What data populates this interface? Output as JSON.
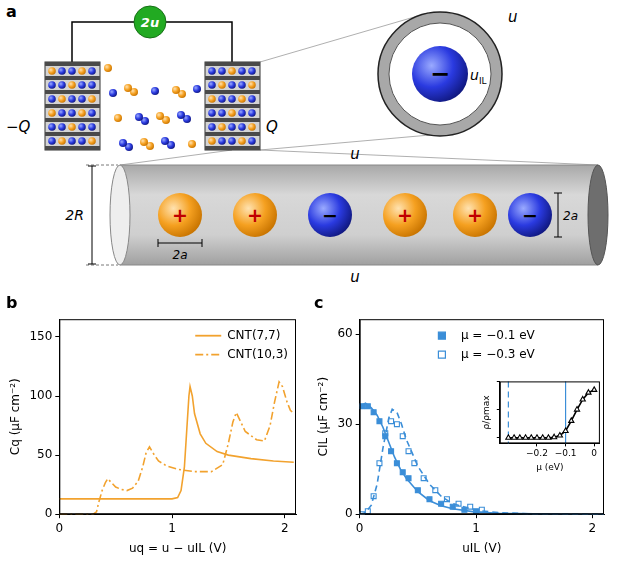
{
  "diagram": {
    "label": "a",
    "battery": "2u",
    "left_charge": "−Q",
    "right_charge": "Q",
    "zoom": {
      "ion": "−",
      "inner_potential": {
        "text": "u",
        "sub": "IL"
      },
      "outer_potential": "u"
    },
    "pore": {
      "top_potential": "u",
      "bottom_potential": "u",
      "diameter": "2R",
      "ion_diameters": [
        "2a",
        "2a"
      ],
      "ions": [
        "+",
        "+",
        "−",
        "+",
        "+",
        "−"
      ]
    }
  },
  "chart_data": [
    {
      "type": "line",
      "title": "b",
      "x_label": "uq = u − uIL (V)",
      "y_label": "Cq (μF cm⁻²)",
      "xlim": [
        0,
        2.1
      ],
      "xticks": [
        0,
        1,
        2
      ],
      "ylim": [
        0,
        165
      ],
      "yticks": [
        0,
        50,
        100,
        150
      ],
      "grid": false,
      "legend": "upper right",
      "series": [
        {
          "name": "CNT(7,7)",
          "color": "#f2a22e",
          "line_style": "solid",
          "x": [
            0,
            0.5,
            1.0,
            1.05,
            1.08,
            1.11,
            1.13,
            1.15,
            1.16,
            1.18,
            1.2,
            1.25,
            1.3,
            1.4,
            1.5,
            1.7,
            1.9,
            2.08
          ],
          "values": [
            13,
            13,
            13,
            14,
            20,
            40,
            70,
            100,
            108,
            100,
            85,
            68,
            60,
            53,
            50,
            47,
            45,
            44
          ]
        },
        {
          "name": "CNT(10,3)",
          "color": "#f2a22e",
          "line_style": "dashdot",
          "x": [
            0,
            0.3,
            0.33,
            0.35,
            0.38,
            0.41,
            0.43,
            0.46,
            0.5,
            0.55,
            0.6,
            0.65,
            0.7,
            0.74,
            0.77,
            0.8,
            0.83,
            0.88,
            0.95,
            1.05,
            1.2,
            1.35,
            1.45,
            1.5,
            1.54,
            1.57,
            1.6,
            1.65,
            1.75,
            1.82,
            1.87,
            1.91,
            1.95,
            1.98,
            2.02,
            2.05,
            2.08
          ],
          "values": [
            0,
            0,
            2,
            10,
            20,
            27,
            30,
            27,
            23,
            21,
            20,
            22,
            28,
            40,
            52,
            57,
            52,
            45,
            41,
            38,
            36,
            36,
            42,
            60,
            78,
            86,
            80,
            70,
            63,
            62,
            75,
            95,
            112,
            108,
            95,
            88,
            85
          ]
        }
      ]
    },
    {
      "type": "line",
      "title": "c",
      "x_label": "uIL (V)",
      "y_label": "CIL (μF cm⁻²)",
      "xlim": [
        0,
        2.1
      ],
      "xticks": [
        0,
        1,
        2
      ],
      "ylim": [
        0,
        65
      ],
      "yticks": [
        0,
        30,
        60
      ],
      "grid": false,
      "legend": "upper center",
      "series": [
        {
          "type": "line",
          "color": "#3b8ed8",
          "line_style": "solid",
          "x": [
            0,
            0.05,
            0.1,
            0.15,
            0.2,
            0.25,
            0.3,
            0.35,
            0.4,
            0.5,
            0.6,
            0.7,
            0.8,
            1.0,
            1.2,
            1.5,
            2.0,
            2.1
          ],
          "values": [
            36,
            37,
            35.5,
            33,
            29,
            24,
            19,
            15,
            12,
            7.5,
            4.5,
            2.8,
            1.8,
            0.7,
            0.3,
            0.1,
            0,
            0
          ]
        },
        {
          "type": "line",
          "color": "#3b8ed8",
          "line_style": "dashed",
          "x": [
            0,
            0.05,
            0.1,
            0.15,
            0.2,
            0.25,
            0.28,
            0.32,
            0.36,
            0.4,
            0.5,
            0.6,
            0.7,
            0.8,
            1.0,
            1.2,
            1.5,
            2.0,
            2.1
          ],
          "values": [
            0,
            0.5,
            3,
            10,
            22,
            32,
            35,
            34,
            30,
            25,
            16,
            10,
            6,
            3.5,
            1.3,
            0.5,
            0.1,
            0,
            0
          ]
        },
        {
          "type": "scatter",
          "name": "μ = −0.1 eV",
          "color": "#3b8ed8",
          "marker": "filled_square",
          "x": [
            0.02,
            0.07,
            0.12,
            0.17,
            0.22,
            0.27,
            0.32,
            0.37,
            0.42,
            0.5,
            0.6,
            0.7,
            0.8,
            0.9,
            1.0
          ],
          "values": [
            36,
            36,
            34,
            31,
            26,
            21,
            17,
            14,
            12,
            8,
            5,
            3.5,
            2.5,
            1.5,
            1
          ]
        },
        {
          "type": "scatter",
          "name": "μ = −0.3 eV",
          "color": "#3b8ed8",
          "marker": "open_square",
          "x": [
            0.02,
            0.07,
            0.12,
            0.17,
            0.22,
            0.27,
            0.32,
            0.37,
            0.42,
            0.47,
            0.55,
            0.65,
            0.75,
            0.85,
            0.95,
            1.05
          ],
          "values": [
            0,
            1,
            6,
            17,
            27,
            31,
            30,
            26,
            21,
            17,
            12,
            8,
            5,
            3.5,
            2.5,
            1.5
          ]
        }
      ],
      "inset": {
        "type": "line",
        "x_label": "μ (eV)",
        "y_label": "ρ/ρmax",
        "xlim": [
          -0.33,
          0.02
        ],
        "xticks": [
          {
            "value": -0.2,
            "label": "−0.2"
          },
          {
            "value": -0.1,
            "label": "−0.1"
          },
          0
        ],
        "ylim": [
          -0.1,
          1
        ],
        "yticks": [
          0,
          0.5,
          1
        ],
        "tick_labels": "x",
        "grid": false,
        "vlines": [
          {
            "x": -0.3,
            "color": "#3b8ed8",
            "line_style": "dashed"
          },
          {
            "x": -0.1,
            "color": "#3b8ed8",
            "line_style": "solid"
          }
        ],
        "series": [
          {
            "color": "#000000",
            "marker": "open_triangle",
            "line_style": "solid",
            "x": [
              -0.3,
              -0.28,
              -0.26,
              -0.24,
              -0.22,
              -0.2,
              -0.18,
              -0.16,
              -0.14,
              -0.12,
              -0.1,
              -0.08,
              -0.06,
              -0.04,
              -0.02,
              0
            ],
            "values": [
              0,
              0,
              0,
              0,
              0,
              0,
              0,
              0,
              0.01,
              0.04,
              0.12,
              0.3,
              0.5,
              0.68,
              0.8,
              0.85
            ]
          }
        ]
      }
    }
  ]
}
